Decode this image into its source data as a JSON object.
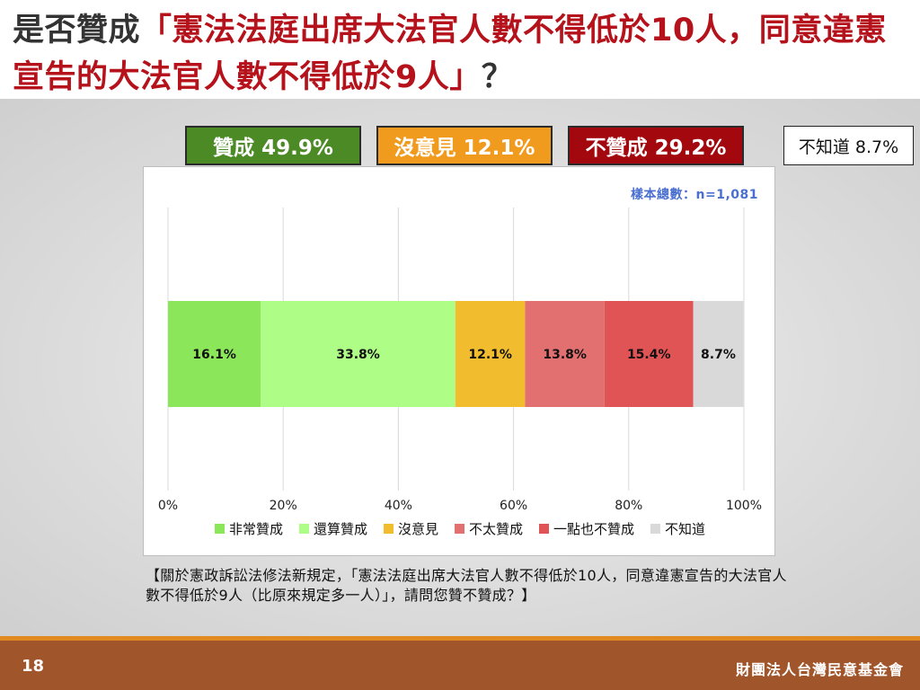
{
  "title": {
    "prefix": "是否贊成",
    "quote": "「憲法法庭出席大法官人數不得低於10人，同意違憲宣告的大法官人數不得低於9人」",
    "suffix": "？"
  },
  "summary": {
    "agree": "贊成 49.9%",
    "neutral": "沒意見 12.1%",
    "disagree": "不贊成 29.2%",
    "unknown": "不知道 8.7%"
  },
  "sample_note": "樣本總數：n=1,081",
  "question": "【關於憲政訴訟法修法新規定，「憲法法庭出席大法官人數不得低於10人，同意違憲宣告的大法官人數不得低於9人（比原來規定多一人）」，請問您贊不贊成？】",
  "footer": {
    "page_number": "18",
    "organization": "財團法人台灣民意基金會"
  },
  "chart_data": {
    "type": "bar",
    "orientation": "horizontal",
    "stacked": true,
    "x_ticks": [
      "0%",
      "20%",
      "40%",
      "60%",
      "80%",
      "100%"
    ],
    "xlim": [
      0,
      100
    ],
    "grid": true,
    "legend_position": "bottom",
    "series": [
      {
        "name": "非常贊成",
        "value": 16.1,
        "label": "16.1%",
        "color": "#8ce65a"
      },
      {
        "name": "還算贊成",
        "value": 33.8,
        "label": "33.8%",
        "color": "#adfd86"
      },
      {
        "name": "沒意見",
        "value": 12.1,
        "label": "12.1%",
        "color": "#f1bd2f"
      },
      {
        "name": "不太贊成",
        "value": 13.8,
        "label": "13.8%",
        "color": "#e27070"
      },
      {
        "name": "一點也不贊成",
        "value": 15.4,
        "label": "15.4%",
        "color": "#e15456"
      },
      {
        "name": "不知道",
        "value": 8.7,
        "label": "8.7%",
        "color": "#d9d9d9"
      }
    ]
  }
}
